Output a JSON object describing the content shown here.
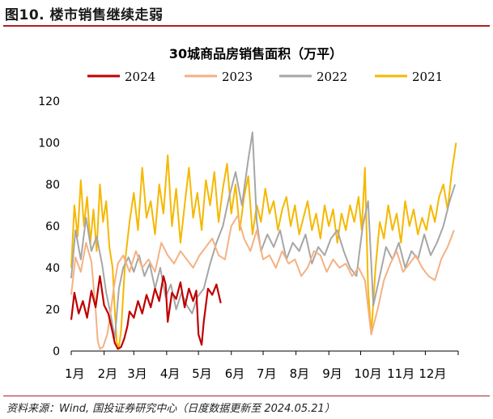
{
  "figure": {
    "title": "图10. 楼市销售继续走弱",
    "source": "资料来源：Wind, 国投证券研究中心（日度数据更新至 2024.05.21）"
  },
  "colors": {
    "rule": "#b01f24",
    "s2024": "#c00000",
    "s2023": "#f4b183",
    "s2022": "#a6a6a6",
    "s2021": "#f5b800"
  },
  "chart_data": {
    "type": "line",
    "title": "30城商品房销售面积（万平）",
    "xlabel": "",
    "ylabel": "",
    "ylim": [
      0,
      120
    ],
    "yticks": [
      "0",
      "20",
      "40",
      "60",
      "80",
      "100",
      "120"
    ],
    "month_labels": [
      "1月",
      "2月",
      "3月",
      "4月",
      "5月",
      "6月",
      "7月",
      "8月",
      "9月",
      "10月",
      "11月",
      "12月"
    ],
    "legend": [
      "2024",
      "2023",
      "2022",
      "2021"
    ],
    "legend_position": "top",
    "x_unit": "day of year",
    "series": [
      {
        "name": "2024",
        "color": "#c00000",
        "days": [
          1,
          4,
          8,
          12,
          16,
          20,
          24,
          28,
          32,
          36,
          40,
          42,
          45,
          48,
          51,
          54,
          56,
          60,
          64,
          68,
          72,
          76,
          80,
          84,
          88,
          90,
          92,
          96,
          100,
          104,
          108,
          112,
          116,
          119,
          121,
          124,
          126,
          128,
          130,
          134,
          138,
          142
        ],
        "values": [
          15,
          28,
          18,
          24,
          16,
          29,
          21,
          36,
          22,
          18,
          9,
          4,
          1,
          2,
          6,
          12,
          19,
          16,
          24,
          18,
          27,
          21,
          30,
          24,
          36,
          32,
          14,
          28,
          25,
          33,
          21,
          30,
          24,
          29,
          8,
          3,
          14,
          22,
          30,
          27,
          32,
          23
        ]
      },
      {
        "name": "2023",
        "color": "#f4b183",
        "days": [
          1,
          5,
          10,
          15,
          20,
          24,
          26,
          28,
          31,
          35,
          38,
          41,
          45,
          50,
          56,
          62,
          68,
          74,
          80,
          86,
          92,
          98,
          104,
          110,
          116,
          122,
          128,
          134,
          140,
          146,
          152,
          158,
          164,
          170,
          176,
          182,
          188,
          194,
          200,
          206,
          212,
          218,
          224,
          230,
          236,
          242,
          248,
          254,
          260,
          266,
          272,
          278,
          284,
          290,
          296,
          302,
          308,
          314,
          320,
          326,
          332,
          338,
          344,
          350,
          356,
          362
        ],
        "values": [
          27,
          45,
          38,
          52,
          43,
          20,
          5,
          1,
          2,
          8,
          18,
          30,
          42,
          46,
          38,
          48,
          40,
          44,
          38,
          52,
          46,
          42,
          48,
          44,
          40,
          46,
          50,
          54,
          46,
          44,
          60,
          65,
          54,
          48,
          58,
          44,
          46,
          40,
          48,
          42,
          44,
          36,
          40,
          48,
          46,
          38,
          44,
          40,
          42,
          36,
          40,
          34,
          8,
          20,
          34,
          42,
          48,
          38,
          42,
          46,
          40,
          36,
          34,
          44,
          50,
          58
        ]
      },
      {
        "name": "2022",
        "color": "#a6a6a6",
        "days": [
          1,
          5,
          10,
          15,
          20,
          25,
          30,
          34,
          38,
          42,
          46,
          50,
          55,
          60,
          65,
          70,
          75,
          80,
          85,
          90,
          95,
          100,
          105,
          110,
          115,
          120,
          126,
          132,
          138,
          144,
          150,
          156,
          162,
          168,
          172,
          176,
          180,
          186,
          192,
          198,
          204,
          210,
          216,
          222,
          228,
          234,
          240,
          246,
          252,
          258,
          264,
          270,
          276,
          281,
          286,
          292,
          298,
          304,
          310,
          316,
          322,
          328,
          334,
          340,
          346,
          352,
          358,
          363
        ],
        "values": [
          35,
          58,
          44,
          64,
          48,
          55,
          42,
          28,
          18,
          6,
          30,
          40,
          45,
          38,
          46,
          36,
          42,
          30,
          40,
          26,
          32,
          20,
          28,
          22,
          18,
          26,
          30,
          42,
          52,
          60,
          74,
          86,
          70,
          92,
          105,
          62,
          48,
          56,
          50,
          58,
          44,
          52,
          48,
          56,
          42,
          50,
          46,
          54,
          58,
          48,
          40,
          36,
          60,
          72,
          22,
          36,
          50,
          44,
          52,
          40,
          48,
          44,
          56,
          46,
          52,
          60,
          72,
          80
        ]
      },
      {
        "name": "2021",
        "color": "#f5b800",
        "days": [
          1,
          4,
          7,
          10,
          13,
          16,
          19,
          22,
          25,
          28,
          31,
          34,
          37,
          40,
          42,
          44,
          46,
          48,
          52,
          56,
          60,
          64,
          68,
          72,
          76,
          80,
          84,
          88,
          92,
          96,
          100,
          104,
          108,
          112,
          116,
          120,
          124,
          128,
          132,
          136,
          140,
          144,
          148,
          152,
          156,
          160,
          164,
          168,
          172,
          176,
          180,
          184,
          188,
          192,
          196,
          200,
          204,
          208,
          212,
          216,
          220,
          224,
          228,
          232,
          236,
          240,
          244,
          248,
          252,
          256,
          260,
          264,
          268,
          272,
          275,
          278,
          281,
          284,
          288,
          292,
          296,
          300,
          304,
          308,
          312,
          316,
          320,
          324,
          328,
          332,
          336,
          340,
          344,
          348,
          352,
          356,
          360,
          364
        ],
        "values": [
          40,
          70,
          55,
          82,
          60,
          74,
          52,
          68,
          48,
          80,
          62,
          72,
          50,
          40,
          20,
          4,
          2,
          10,
          44,
          62,
          76,
          58,
          88,
          64,
          72,
          56,
          80,
          66,
          94,
          60,
          78,
          52,
          70,
          88,
          64,
          76,
          58,
          82,
          70,
          86,
          62,
          78,
          90,
          66,
          80,
          58,
          74,
          84,
          56,
          70,
          62,
          78,
          66,
          72,
          58,
          68,
          74,
          60,
          70,
          56,
          64,
          72,
          58,
          66,
          54,
          70,
          60,
          68,
          52,
          66,
          58,
          70,
          62,
          74,
          58,
          88,
          30,
          8,
          40,
          62,
          54,
          70,
          58,
          66,
          52,
          72,
          60,
          68,
          56,
          64,
          58,
          70,
          62,
          74,
          80,
          68,
          86,
          100
        ]
      }
    ]
  }
}
